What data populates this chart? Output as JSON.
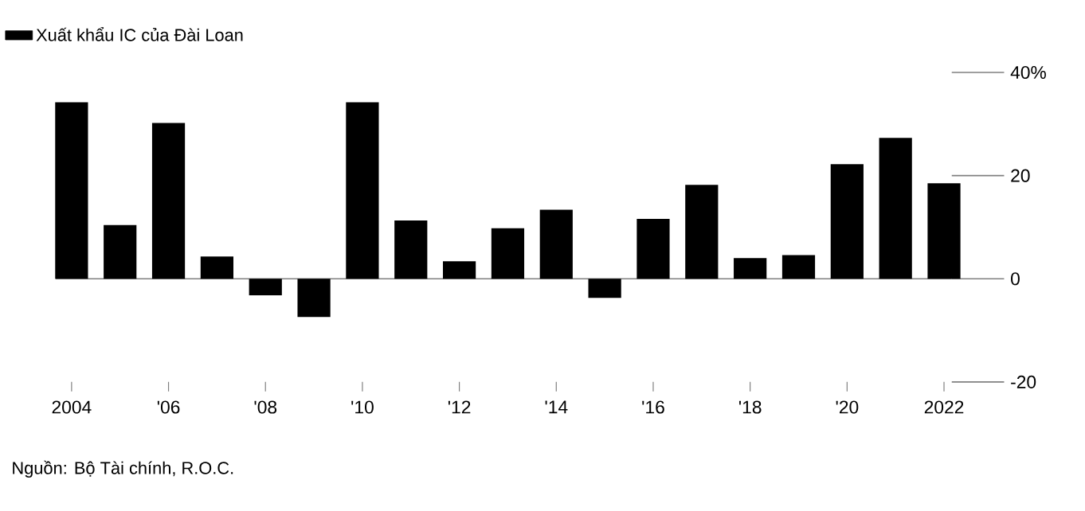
{
  "chart_data": {
    "type": "bar",
    "categories": [
      "2004",
      null,
      "'06",
      null,
      "'08",
      null,
      "'10",
      null,
      "'12",
      null,
      "'14",
      null,
      "'16",
      null,
      "'18",
      null,
      "'20",
      null,
      "2022"
    ],
    "series": [
      {
        "name": "Xuất khẩu IC của Đài Loan",
        "color": "#000000",
        "values": [
          34.2,
          10.4,
          30.2,
          4.3,
          -3.2,
          -7.4,
          34.2,
          11.3,
          3.4,
          9.8,
          13.4,
          -3.7,
          11.6,
          18.2,
          4.0,
          4.6,
          22.2,
          27.3,
          18.5
        ]
      }
    ],
    "ylim": [
      -20,
      40
    ],
    "ref_lines": [
      {
        "axis": "y",
        "value": 0,
        "color": "#808080"
      }
    ],
    "yticks": [
      -20,
      0,
      20,
      {
        "value": 40,
        "label": "40%"
      }
    ],
    "legend": "top left",
    "annotations": [
      "Nguồn: Bộ Tài chính, R.O.C."
    ]
  }
}
